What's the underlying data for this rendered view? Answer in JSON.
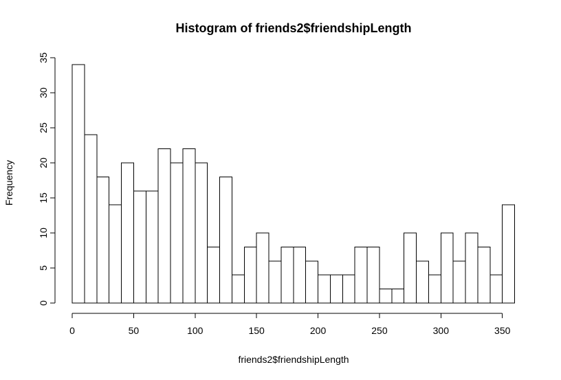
{
  "chart_data": {
    "type": "bar",
    "title": "Histogram of friends2$friendshipLength",
    "xlabel": "friends2$friendshipLength",
    "ylabel": "Frequency",
    "bin_width": 10,
    "bin_starts": [
      0,
      10,
      20,
      30,
      40,
      50,
      60,
      70,
      80,
      90,
      100,
      110,
      120,
      130,
      140,
      150,
      160,
      170,
      180,
      190,
      200,
      210,
      220,
      230,
      240,
      250,
      260,
      270,
      280,
      290,
      300,
      310,
      320,
      330,
      340,
      350
    ],
    "values": [
      34,
      24,
      18,
      14,
      20,
      16,
      16,
      22,
      20,
      22,
      20,
      8,
      18,
      4,
      8,
      10,
      6,
      8,
      8,
      6,
      4,
      4,
      4,
      8,
      8,
      2,
      2,
      10,
      6,
      4,
      10,
      6,
      10,
      8,
      4,
      14
    ],
    "xlim": [
      0,
      360
    ],
    "ylim": [
      0,
      35
    ],
    "x_ticks": [
      "0",
      "50",
      "100",
      "150",
      "200",
      "250",
      "300",
      "350"
    ],
    "y_ticks": [
      "0",
      "5",
      "10",
      "15",
      "20",
      "25",
      "30",
      "35"
    ],
    "grid": false,
    "legend": "none"
  }
}
